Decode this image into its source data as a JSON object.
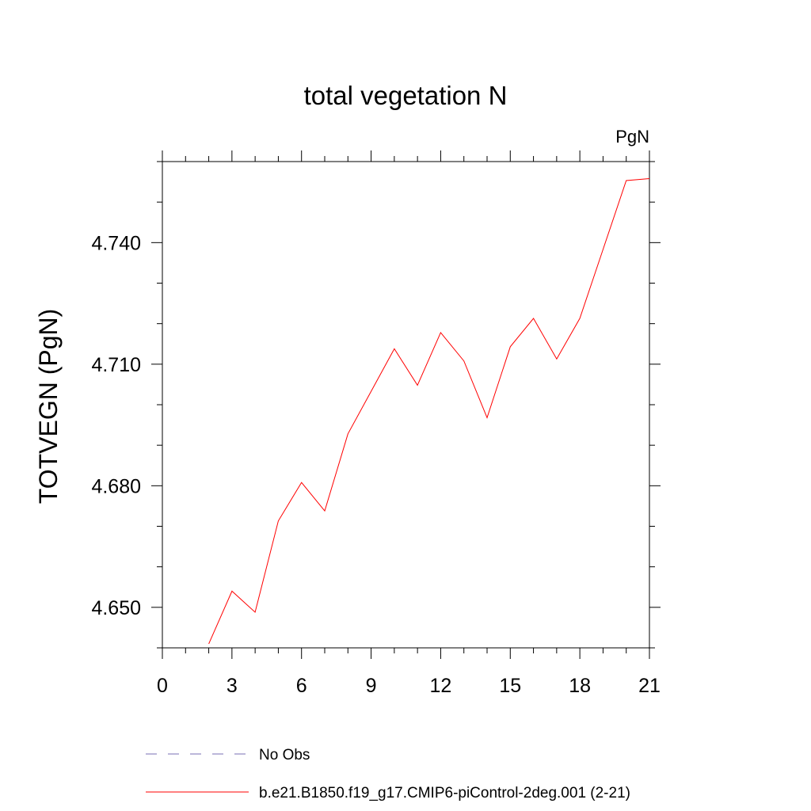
{
  "chart_data": {
    "type": "line",
    "title": "total vegetation N",
    "units_label": "PgN",
    "xlabel": "",
    "ylabel": "TOTVEGN  (PgN)",
    "xlim": [
      0,
      21
    ],
    "ylim": [
      4.64,
      4.76
    ],
    "x_ticks": [
      0,
      3,
      6,
      9,
      12,
      15,
      18,
      21
    ],
    "x_tick_labels": [
      "0",
      "3",
      "6",
      "9",
      "12",
      "15",
      "18",
      "21"
    ],
    "y_ticks": [
      4.65,
      4.68,
      4.71,
      4.74
    ],
    "y_tick_labels": [
      "4.650",
      "4.680",
      "4.710",
      "4.740"
    ],
    "grid": false,
    "legend_position": "bottom",
    "series": [
      {
        "name": "b.e21.B1850.f19_g17.CMIP6-piControl-2deg.001 (2-21)",
        "color": "#ff0000",
        "style": "solid",
        "x": [
          2,
          3,
          4,
          5,
          6,
          7,
          8,
          9,
          10,
          11,
          12,
          13,
          14,
          15,
          16,
          17,
          18,
          19,
          20,
          21
        ],
        "values": [
          4.641,
          4.654,
          4.6488,
          4.6713,
          4.6808,
          4.6738,
          4.6928,
          4.7033,
          4.7138,
          4.7048,
          4.7178,
          4.7108,
          4.6968,
          4.7143,
          4.7213,
          4.7113,
          4.7213,
          4.7383,
          4.7553,
          4.7558
        ]
      }
    ],
    "legend": [
      {
        "label": "No Obs",
        "color": "#7a6fb5",
        "style": "dashed"
      },
      {
        "label": "b.e21.B1850.f19_g17.CMIP6-piControl-2deg.001 (2-21)",
        "color": "#ff0000",
        "style": "solid"
      }
    ]
  }
}
